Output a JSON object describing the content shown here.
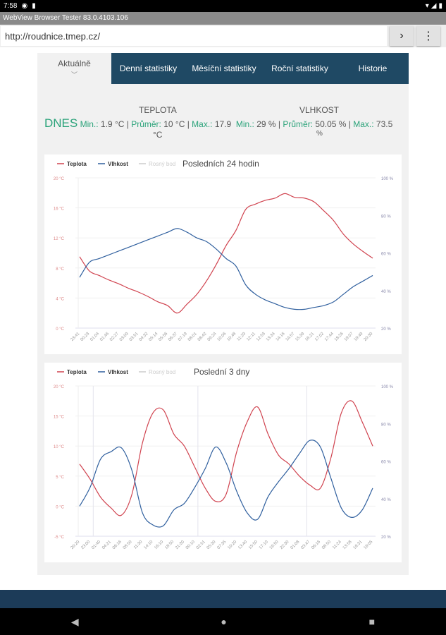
{
  "status": {
    "time": "7:58"
  },
  "window_title": "WebView Browser Tester 83.0.4103.106",
  "url": "http://roudnice.tmep.cz/",
  "tabs": [
    "Aktuálně",
    "Denní statistiky",
    "Měsíční statistiky",
    "Roční statistiky",
    "Historie"
  ],
  "stats": {
    "today": "DNES",
    "temp_heading": "TEPLOTA",
    "hum_heading": "VLHKOST",
    "temp_min_label": "Min.:",
    "temp_min": " 1.9 °C | ",
    "temp_avg_label": "Průměr:",
    "temp_avg": " 10 °C | ",
    "temp_max_label": "Max.:",
    "temp_max": " 17.9",
    "temp_unit": "°C",
    "hum_min_label": "Min.:",
    "hum_min": " 29 % | ",
    "hum_avg_label": "Průměr:",
    "hum_avg": " 50.05 % | ",
    "hum_max_label": "Max.:",
    "hum_max": " 73.5",
    "hum_unit": "%"
  },
  "colors": {
    "temp": "#d0434f",
    "hum": "#2f5f9e",
    "dew": "#cccccc",
    "tab": "#1f4964",
    "accent": "#2ba37a"
  },
  "chart_data": [
    {
      "type": "line",
      "title": "Posledních 24 hodin",
      "legend": [
        "Teplota",
        "Vlhkost",
        "Rosný bod"
      ],
      "y_left": {
        "ticks": [
          "0 °C",
          "4 °C",
          "8 °C",
          "12 °C",
          "16 °C",
          "20 °C"
        ],
        "range": [
          0,
          20
        ]
      },
      "y_right": {
        "ticks": [
          "20 %",
          "40 %",
          "60 %",
          "80 %",
          "100 %"
        ],
        "range": [
          20,
          100
        ]
      },
      "x": [
        "23:41",
        "00:23",
        "01:04",
        "01:46",
        "02:27",
        "03:09",
        "03:51",
        "04:32",
        "05:14",
        "05:56",
        "06:37",
        "07:19",
        "08:01",
        "08:42",
        "09:24",
        "10:06",
        "10:48",
        "11:29",
        "12:11",
        "12:53",
        "13:34",
        "14:16",
        "14:57",
        "15:39",
        "16:21",
        "17:02",
        "17:44",
        "18:26",
        "19:07",
        "19:49",
        "20:30"
      ],
      "dividers": [],
      "series": [
        {
          "name": "Teplota",
          "axis": "left",
          "values": [
            9.5,
            7.6,
            7.0,
            6.4,
            5.9,
            5.3,
            4.8,
            4.2,
            3.5,
            3.0,
            2.0,
            3.2,
            4.5,
            6.3,
            8.5,
            11,
            13,
            15.8,
            16.5,
            17.0,
            17.3,
            17.9,
            17.4,
            17.3,
            16.8,
            15.6,
            14.3,
            12.5,
            11.2,
            10.2,
            9.3
          ]
        },
        {
          "name": "Vlhkost",
          "axis": "right",
          "values": [
            47,
            55,
            57,
            59,
            61,
            63,
            65,
            67,
            69,
            71,
            73,
            71,
            68,
            66,
            62,
            57,
            53,
            43,
            38,
            35,
            33,
            31,
            30,
            30,
            31,
            32,
            34,
            38,
            42,
            45,
            48
          ]
        }
      ]
    },
    {
      "type": "line",
      "title": "Poslední 3 dny",
      "legend": [
        "Teplota",
        "Vlhkost",
        "Rosný bod"
      ],
      "y_left": {
        "ticks": [
          "-5 °C",
          "0 °C",
          "5 °C",
          "10 °C",
          "15 °C",
          "20 °C"
        ],
        "range": [
          -5,
          20
        ]
      },
      "y_right": {
        "ticks": [
          "20 %",
          "40 %",
          "60 %",
          "80 %",
          "100 %"
        ],
        "range": [
          20,
          100
        ]
      },
      "x": [
        "20:20",
        "23:00",
        "01:40",
        "04:21",
        "06:16",
        "08:50",
        "11:30",
        "14:10",
        "16:10",
        "18:50",
        "21:30",
        "00:10",
        "02:51",
        "05:30",
        "07:35",
        "10:20",
        "13:40",
        "15:50",
        "17:10",
        "19:50",
        "22:30",
        "01:08",
        "03:47",
        "06:16",
        "08:50",
        "11:24",
        "13:58",
        "16:31",
        "19:05"
      ],
      "dividers": [
        1.3,
        11.3,
        21.7
      ],
      "series": [
        {
          "name": "Teplota",
          "axis": "left",
          "values": [
            7,
            4.5,
            1.5,
            -0.3,
            -1.5,
            2,
            10.5,
            15.5,
            16,
            12,
            10,
            6.5,
            3,
            0.8,
            2,
            9,
            14,
            16.5,
            12,
            8.5,
            7,
            5,
            3.5,
            3,
            8,
            15.5,
            17.5,
            14,
            10
          ]
        },
        {
          "name": "Vlhkost",
          "axis": "right",
          "values": [
            36,
            46,
            61,
            65,
            67,
            55,
            32.5,
            26,
            25.6,
            34,
            37.5,
            46,
            56,
            67.5,
            59,
            44,
            32.5,
            29,
            41,
            49,
            56,
            64,
            71,
            67.5,
            51,
            35,
            30,
            34,
            45.6
          ]
        }
      ]
    }
  ]
}
